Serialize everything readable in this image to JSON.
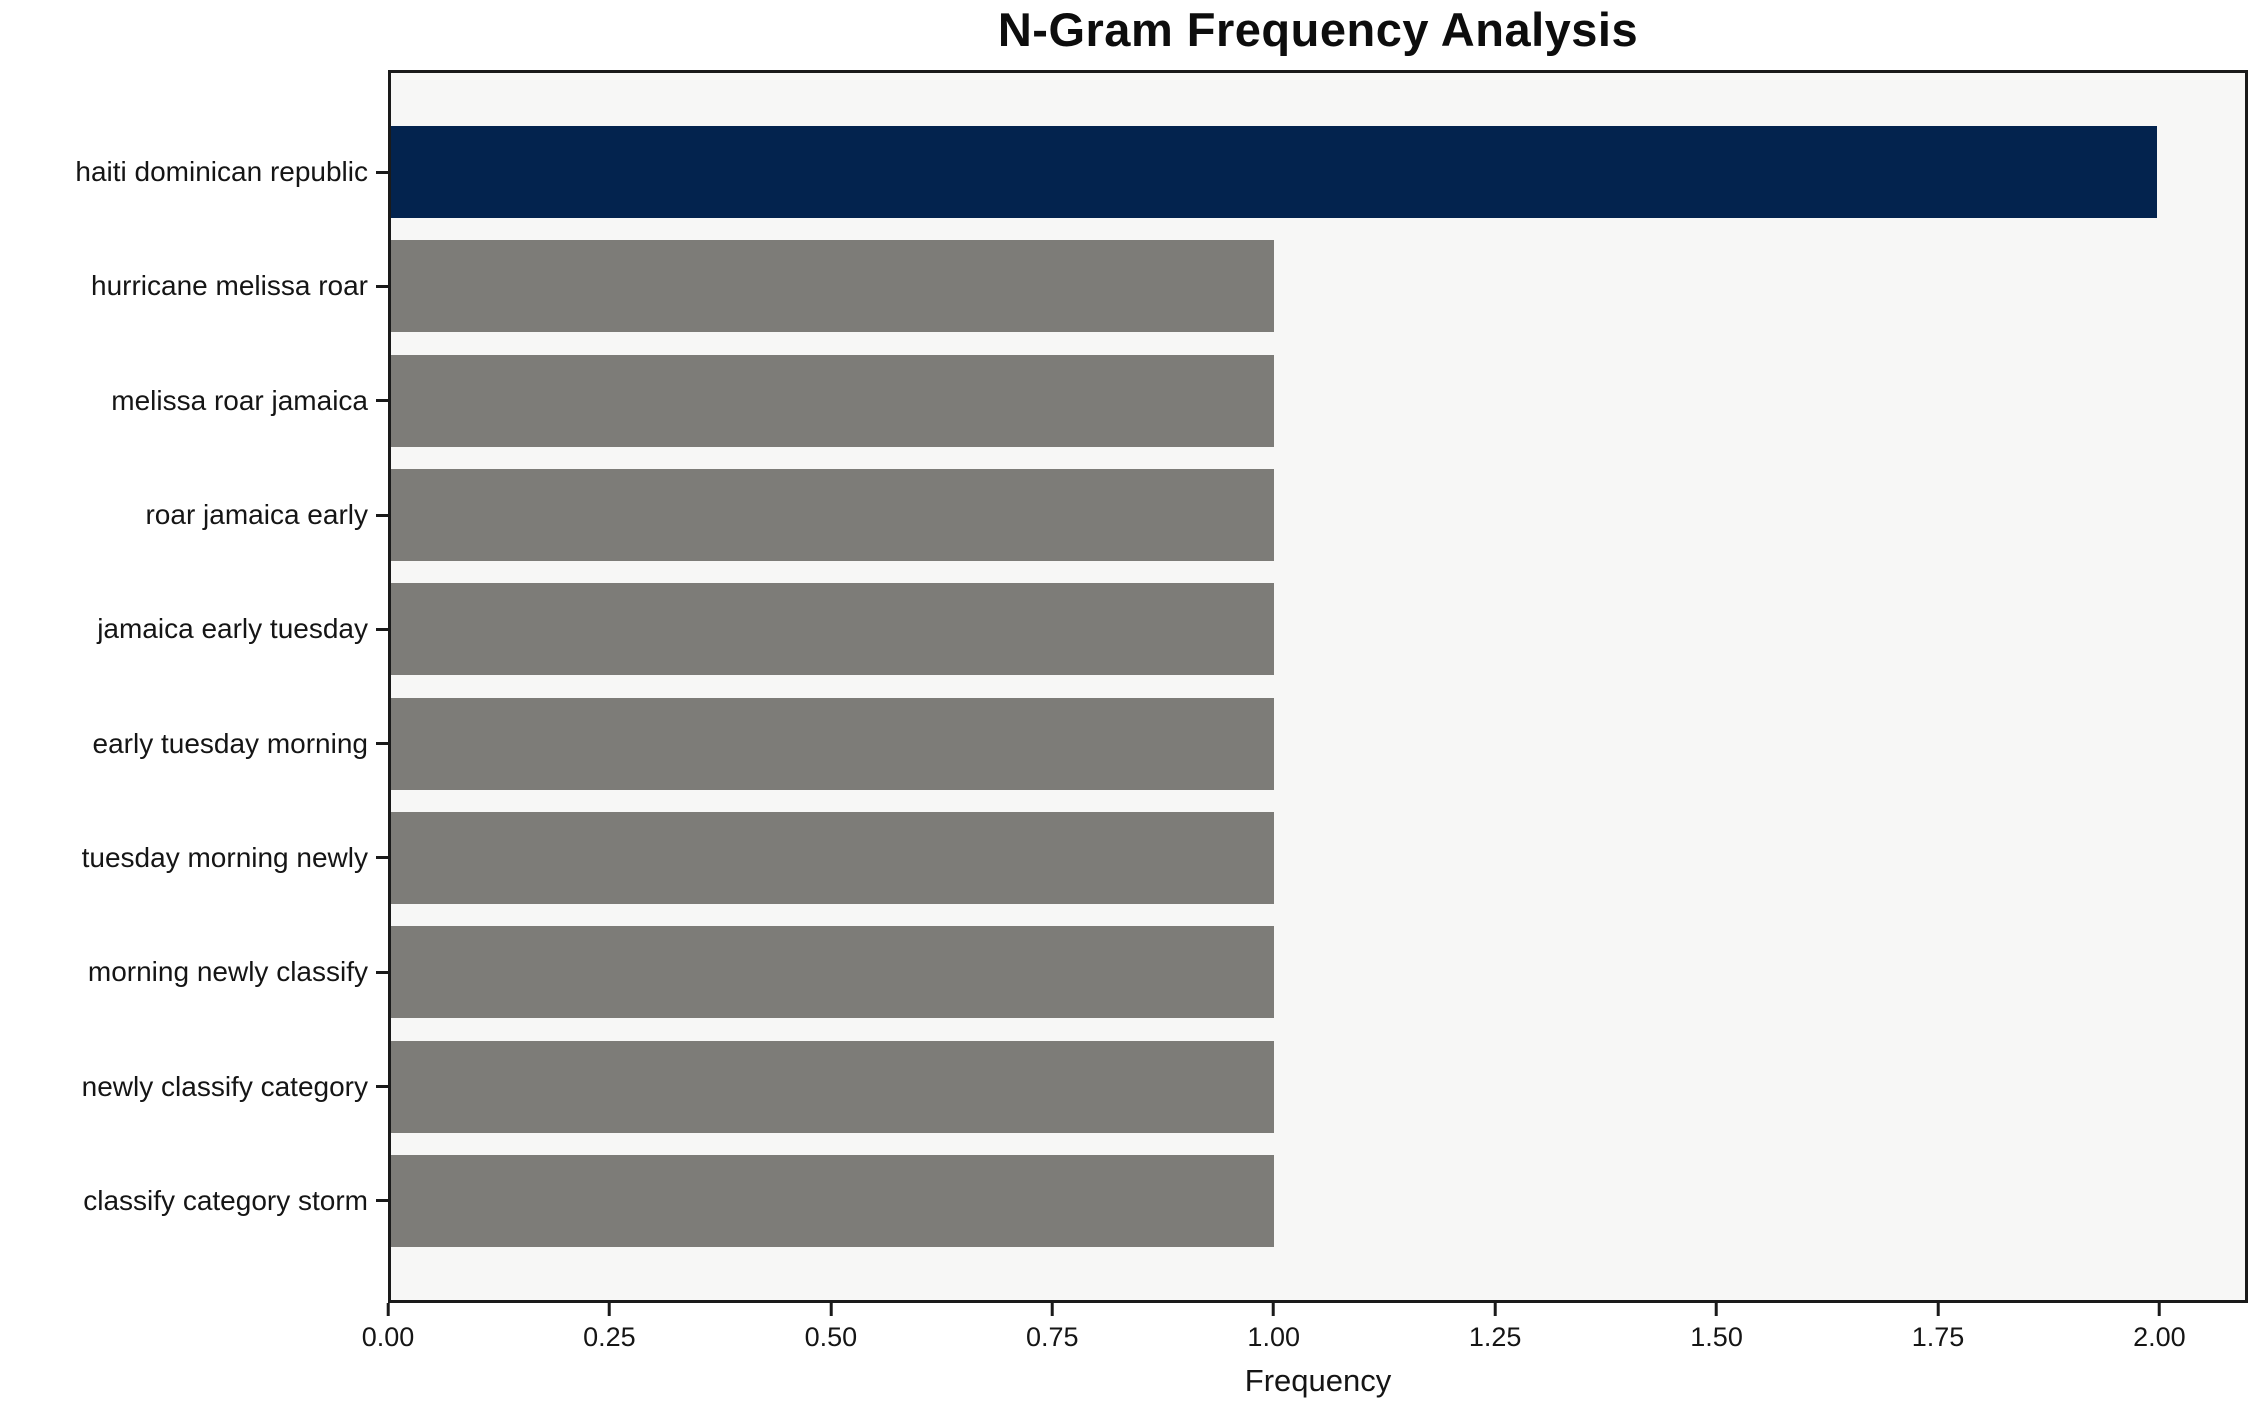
{
  "chart_data": {
    "type": "bar",
    "orientation": "horizontal",
    "title": "N-Gram Frequency Analysis",
    "xlabel": "Frequency",
    "ylabel": "",
    "categories": [
      "haiti dominican republic",
      "hurricane melissa roar",
      "melissa roar jamaica",
      "roar jamaica early",
      "jamaica early tuesday",
      "early tuesday morning",
      "tuesday morning newly",
      "morning newly classify",
      "newly classify category",
      "classify category storm"
    ],
    "values": [
      2,
      1,
      1,
      1,
      1,
      1,
      1,
      1,
      1,
      1
    ],
    "bar_colors": [
      "#03234e",
      "#7d7c78",
      "#7d7c78",
      "#7d7c78",
      "#7d7c78",
      "#7d7c78",
      "#7d7c78",
      "#7d7c78",
      "#7d7c78",
      "#7d7c78"
    ],
    "xlim": [
      0,
      2.1
    ],
    "xtick_values": [
      0,
      0.25,
      0.5,
      0.75,
      1.0,
      1.25,
      1.5,
      1.75,
      2.0
    ],
    "xtick_labels": [
      "0.00",
      "0.25",
      "0.50",
      "0.75",
      "1.00",
      "1.25",
      "1.50",
      "1.75",
      "2.00"
    ],
    "grid": false,
    "legend": null,
    "colors": {
      "highlight_bar": "#03234e",
      "default_bar": "#7d7c78",
      "plot_background": "#f7f7f6",
      "spine": "#1a1a1a",
      "text": "#151515"
    }
  }
}
